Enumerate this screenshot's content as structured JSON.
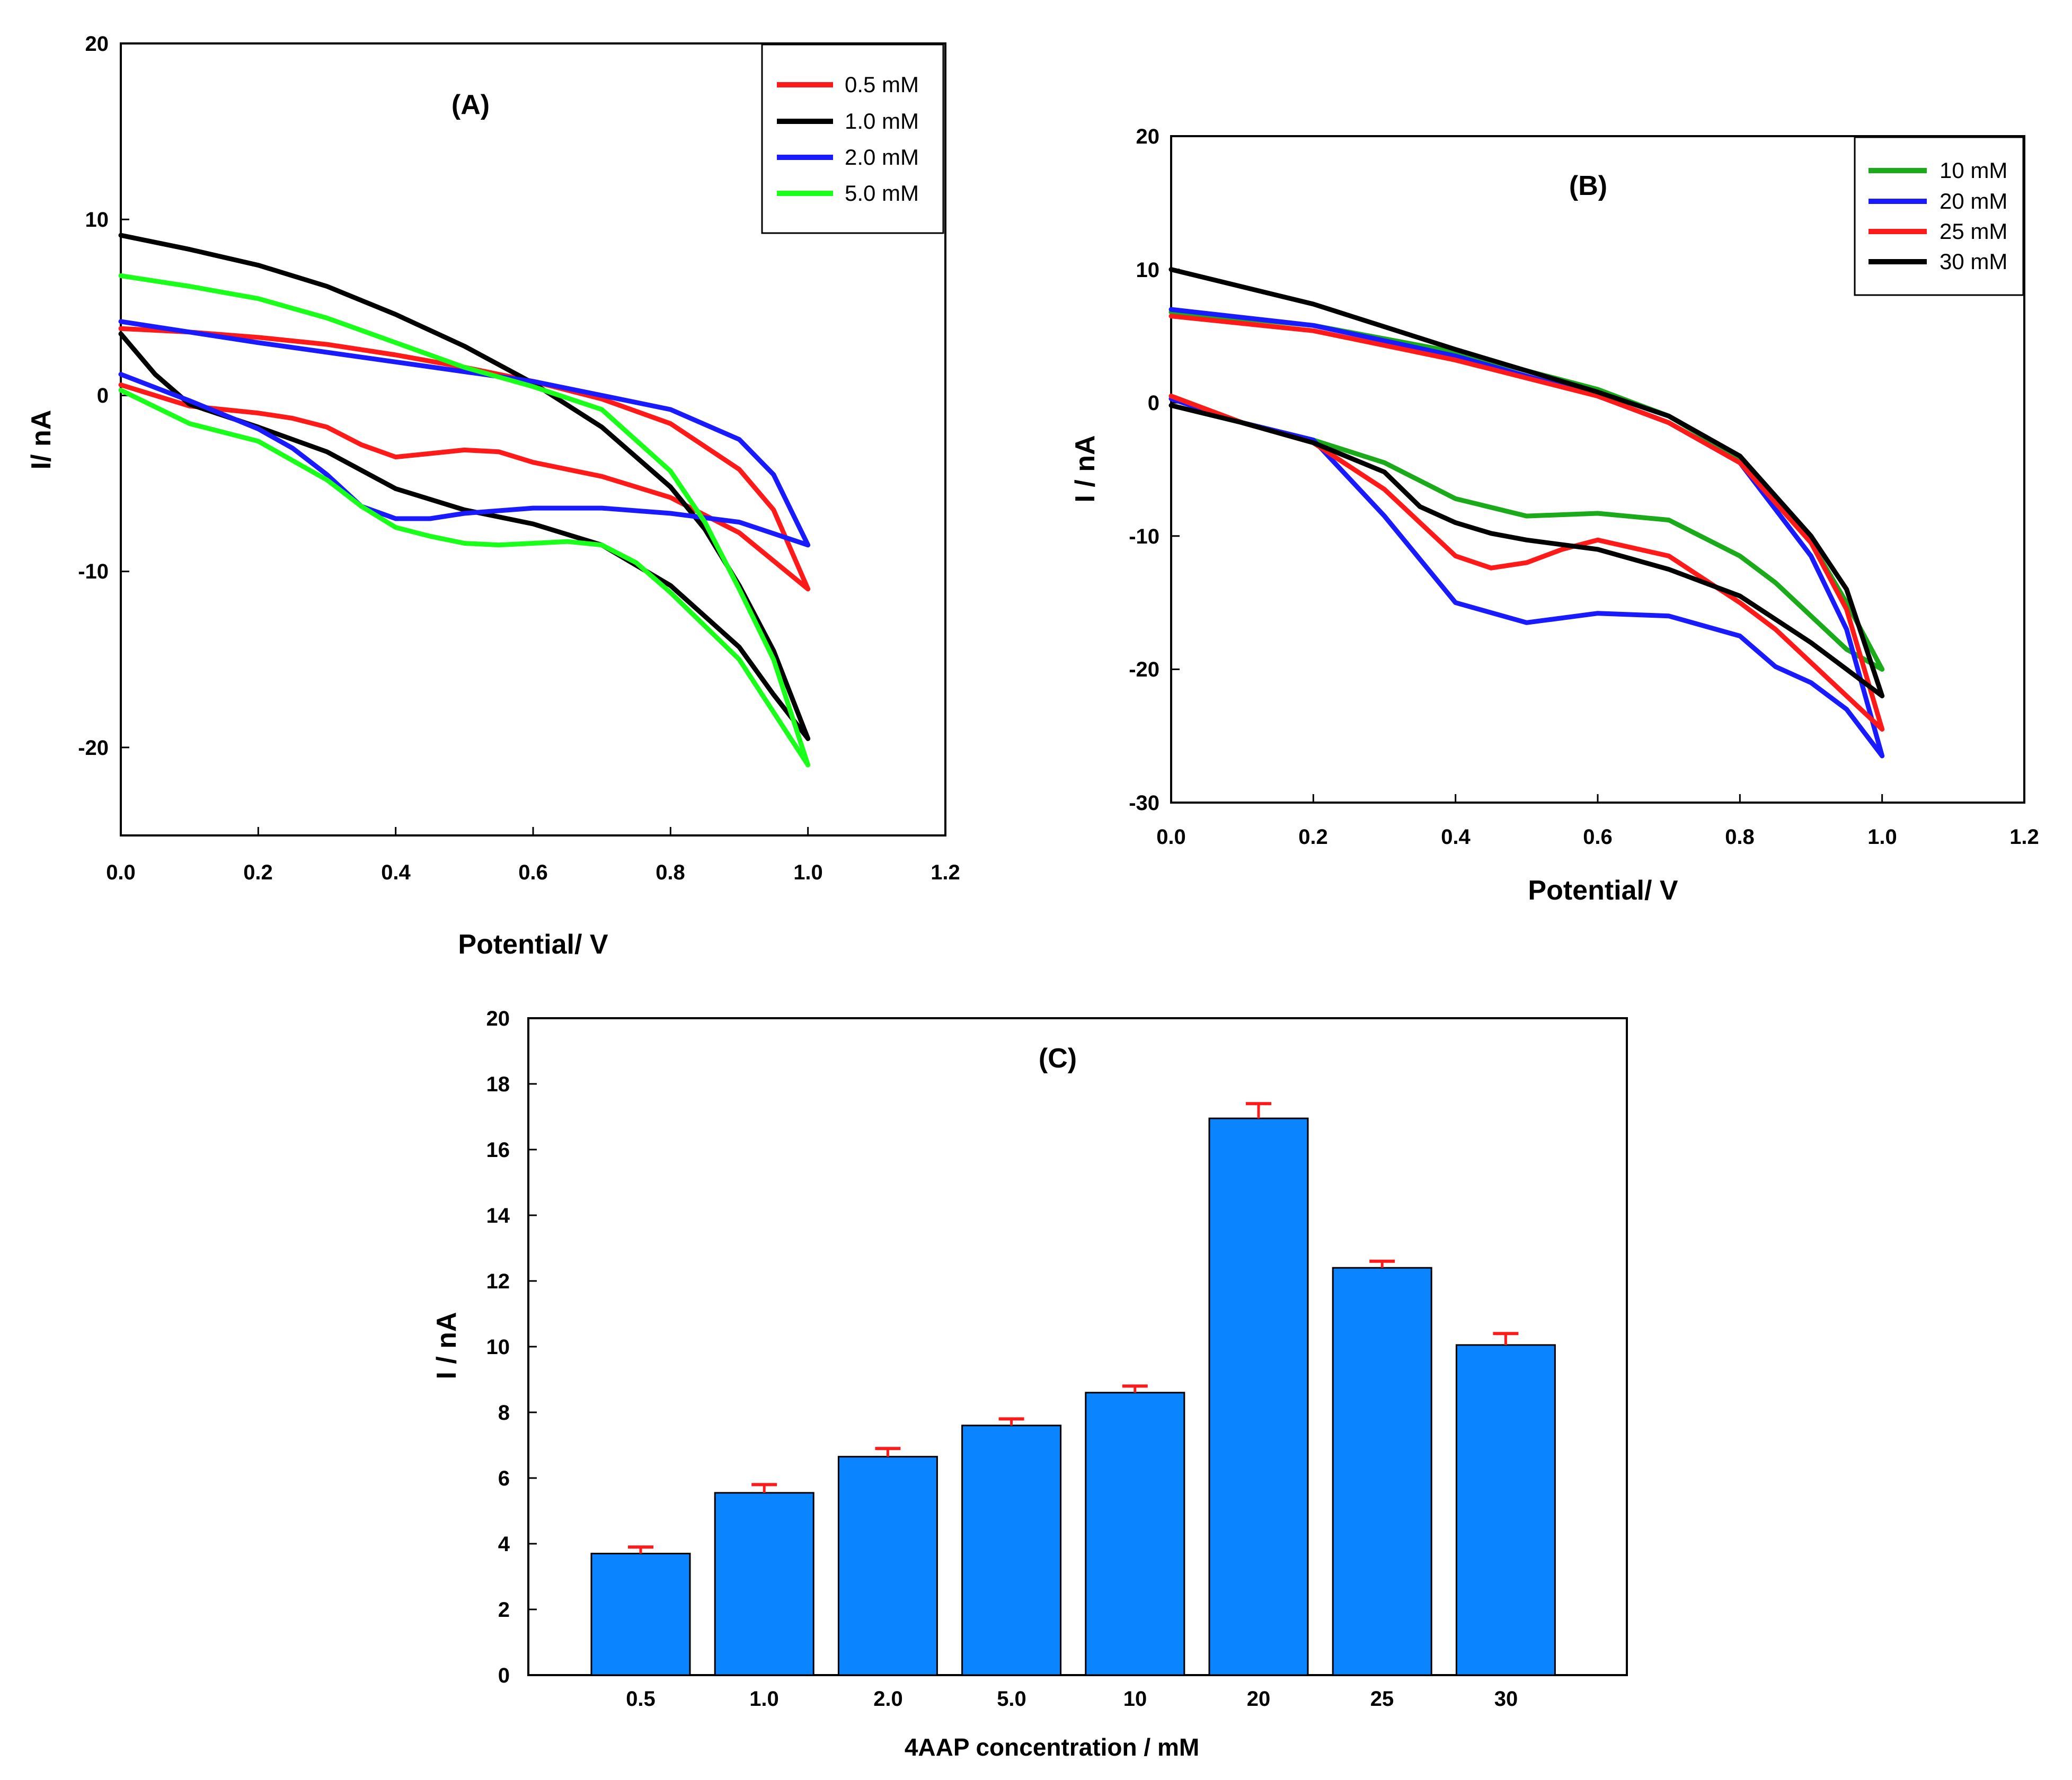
{
  "chart_data": [
    {
      "id": "A",
      "type": "line",
      "panel_label": "(A)",
      "xlabel": "Potential/ V",
      "ylabel": "I/ nA",
      "xlim": [
        0.0,
        1.2
      ],
      "ylim": [
        -25,
        20
      ],
      "x_ticks": [
        "0.0",
        "0.2",
        "0.4",
        "0.6",
        "0.8",
        "1.0",
        "1.2"
      ],
      "y_ticks": [
        "20",
        "10",
        "0",
        "-10",
        "-20"
      ],
      "legend_position": "top-right",
      "series": [
        {
          "name": "0.5 mM",
          "color": "#ff1a1a",
          "x": [
            0.0,
            0.1,
            0.2,
            0.3,
            0.4,
            0.5,
            0.6,
            0.7,
            0.8,
            0.9,
            0.95,
            1.0,
            0.9,
            0.8,
            0.7,
            0.6,
            0.55,
            0.5,
            0.45,
            0.4,
            0.35,
            0.3,
            0.25,
            0.2,
            0.1,
            0.0
          ],
          "y": [
            3.8,
            3.6,
            3.3,
            2.9,
            2.3,
            1.6,
            0.8,
            -0.2,
            -1.6,
            -4.2,
            -6.5,
            -11.0,
            -7.8,
            -5.8,
            -4.6,
            -3.8,
            -3.2,
            -3.1,
            -3.3,
            -3.5,
            -2.8,
            -1.8,
            -1.3,
            -1.0,
            -0.6,
            0.6
          ]
        },
        {
          "name": "1.0 mM",
          "color": "#000000",
          "x": [
            0.0,
            0.1,
            0.2,
            0.3,
            0.4,
            0.5,
            0.6,
            0.7,
            0.8,
            0.85,
            0.9,
            0.95,
            1.0,
            0.95,
            0.9,
            0.8,
            0.7,
            0.6,
            0.5,
            0.4,
            0.3,
            0.2,
            0.1,
            0.05,
            0.0
          ],
          "y": [
            9.1,
            8.3,
            7.4,
            6.2,
            4.6,
            2.8,
            0.7,
            -1.8,
            -5.2,
            -7.6,
            -10.8,
            -14.5,
            -19.5,
            -17.0,
            -14.3,
            -10.8,
            -8.5,
            -7.3,
            -6.5,
            -5.3,
            -3.2,
            -1.8,
            -0.5,
            1.2,
            3.5
          ]
        },
        {
          "name": "2.0 mM",
          "color": "#1a1aff",
          "x": [
            0.0,
            0.2,
            0.4,
            0.6,
            0.7,
            0.8,
            0.9,
            0.95,
            1.0,
            0.9,
            0.8,
            0.7,
            0.6,
            0.5,
            0.45,
            0.4,
            0.35,
            0.3,
            0.25,
            0.2,
            0.1,
            0.0
          ],
          "y": [
            4.2,
            3.0,
            1.9,
            0.8,
            0.0,
            -0.8,
            -2.5,
            -4.5,
            -8.5,
            -7.2,
            -6.7,
            -6.4,
            -6.4,
            -6.7,
            -7.0,
            -7.0,
            -6.3,
            -4.5,
            -3.0,
            -1.9,
            -0.3,
            1.2
          ]
        },
        {
          "name": "5.0 mM",
          "color": "#1aff1a",
          "x": [
            0.0,
            0.1,
            0.2,
            0.3,
            0.4,
            0.5,
            0.6,
            0.7,
            0.8,
            0.85,
            0.9,
            0.95,
            1.0,
            0.95,
            0.9,
            0.8,
            0.75,
            0.7,
            0.65,
            0.6,
            0.55,
            0.5,
            0.45,
            0.4,
            0.35,
            0.3,
            0.2,
            0.1,
            0.0
          ],
          "y": [
            6.8,
            6.2,
            5.5,
            4.4,
            3.0,
            1.6,
            0.5,
            -0.8,
            -4.3,
            -7.2,
            -11.0,
            -15.0,
            -21.0,
            -18.0,
            -15.0,
            -11.2,
            -9.5,
            -8.5,
            -8.3,
            -8.4,
            -8.5,
            -8.4,
            -8.0,
            -7.5,
            -6.3,
            -4.8,
            -2.6,
            -1.6,
            0.3
          ]
        }
      ]
    },
    {
      "id": "B",
      "type": "line",
      "panel_label": "(B)",
      "xlabel": "Potential/ V",
      "ylabel": "I / nA",
      "xlim": [
        0.0,
        1.2
      ],
      "ylim": [
        -30,
        20
      ],
      "x_ticks": [
        "0.0",
        "0.2",
        "0.4",
        "0.6",
        "0.8",
        "1.0",
        "1.2"
      ],
      "y_ticks": [
        "20",
        "10",
        "0",
        "-10",
        "-20",
        "-30"
      ],
      "legend_position": "top-right",
      "series": [
        {
          "name": "10 mM",
          "color": "#1aaa1a",
          "x": [
            0.0,
            0.2,
            0.4,
            0.6,
            0.7,
            0.8,
            0.9,
            0.95,
            1.0,
            0.95,
            0.9,
            0.85,
            0.8,
            0.7,
            0.6,
            0.5,
            0.4,
            0.3,
            0.2,
            0.1,
            0.0
          ],
          "y": [
            6.8,
            5.8,
            3.8,
            1.0,
            -1.0,
            -4.2,
            -10.5,
            -15.0,
            -20.0,
            -18.5,
            -16.0,
            -13.5,
            -11.5,
            -8.8,
            -8.3,
            -8.5,
            -7.2,
            -4.5,
            -2.8,
            -1.5,
            0.5
          ]
        },
        {
          "name": "20 mM",
          "color": "#1a1aff",
          "x": [
            0.0,
            0.2,
            0.4,
            0.6,
            0.7,
            0.8,
            0.9,
            0.95,
            1.0,
            0.95,
            0.9,
            0.85,
            0.8,
            0.7,
            0.6,
            0.5,
            0.4,
            0.3,
            0.2,
            0.1,
            0.0
          ],
          "y": [
            7.0,
            5.8,
            3.5,
            0.5,
            -1.5,
            -4.5,
            -11.5,
            -17.0,
            -26.5,
            -23.0,
            -21.0,
            -19.8,
            -17.5,
            -16.0,
            -15.8,
            -16.5,
            -15.0,
            -8.5,
            -2.8,
            -1.5,
            0.3
          ]
        },
        {
          "name": "25 mM",
          "color": "#ff1a1a",
          "x": [
            0.0,
            0.2,
            0.4,
            0.6,
            0.7,
            0.8,
            0.9,
            0.95,
            1.0,
            0.95,
            0.9,
            0.85,
            0.8,
            0.7,
            0.6,
            0.55,
            0.5,
            0.45,
            0.4,
            0.3,
            0.2,
            0.1,
            0.0
          ],
          "y": [
            6.5,
            5.4,
            3.2,
            0.5,
            -1.5,
            -4.5,
            -10.5,
            -15.5,
            -24.5,
            -22.0,
            -19.5,
            -17.0,
            -15.0,
            -11.5,
            -10.3,
            -11.0,
            -12.0,
            -12.4,
            -11.5,
            -6.5,
            -3.0,
            -1.5,
            0.5
          ]
        },
        {
          "name": "30 mM",
          "color": "#000000",
          "x": [
            0.0,
            0.2,
            0.4,
            0.6,
            0.7,
            0.8,
            0.9,
            0.95,
            1.0,
            0.95,
            0.9,
            0.8,
            0.7,
            0.6,
            0.5,
            0.45,
            0.4,
            0.35,
            0.3,
            0.2,
            0.1,
            0.0
          ],
          "y": [
            10.0,
            7.4,
            4.0,
            0.8,
            -1.0,
            -4.0,
            -10.0,
            -14.0,
            -22.0,
            -20.0,
            -18.0,
            -14.5,
            -12.5,
            -11.0,
            -10.3,
            -9.8,
            -9.0,
            -7.8,
            -5.2,
            -3.0,
            -1.5,
            -0.2
          ]
        }
      ]
    },
    {
      "id": "C",
      "type": "bar",
      "panel_label": "(C)",
      "xlabel": "4AAP concentration / mM",
      "ylabel": "I / nA",
      "ylim": [
        0,
        20
      ],
      "y_ticks": [
        "20",
        "18",
        "16",
        "14",
        "12",
        "10",
        "8",
        "6",
        "4",
        "2",
        "0"
      ],
      "categories": [
        "0.5",
        "1.0",
        "2.0",
        "5.0",
        "10",
        "20",
        "25",
        "30"
      ],
      "values": [
        3.7,
        5.55,
        6.65,
        7.6,
        8.6,
        16.95,
        12.4,
        10.05
      ],
      "errors": [
        0.2,
        0.25,
        0.25,
        0.2,
        0.2,
        0.45,
        0.2,
        0.35
      ],
      "bar_color": "#0a84ff",
      "error_color": "#ff1a1a"
    }
  ]
}
